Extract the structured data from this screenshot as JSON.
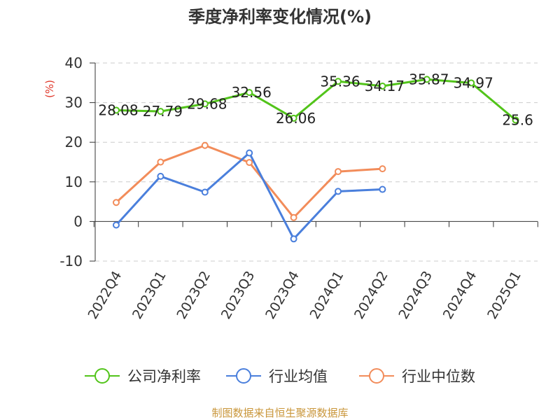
{
  "chart_data": {
    "type": "line",
    "title": "季度净利率变化情况(%)",
    "ylabel": "(%)",
    "xlabel": "",
    "ylim": [
      -10,
      40
    ],
    "yticks": [
      40,
      30,
      20,
      10,
      0,
      -10
    ],
    "grid": true,
    "legend_position": "bottom",
    "categories": [
      "2022Q4",
      "2023Q1",
      "2023Q2",
      "2023Q3",
      "2023Q4",
      "2024Q1",
      "2024Q2",
      "2024Q3",
      "2024Q4",
      "2025Q1"
    ],
    "series": [
      {
        "name": "公司净利率",
        "color": "#52c41a",
        "values": [
          28.08,
          27.79,
          29.68,
          32.56,
          26.06,
          35.36,
          34.17,
          35.87,
          34.97,
          25.6
        ],
        "data_labels": [
          "28.08",
          "27.79",
          "29.68",
          "32.56",
          "26.06",
          "35.36",
          "34.17",
          "35.87",
          "34.97",
          "25.6"
        ]
      },
      {
        "name": "行业均值",
        "color": "#4a7fdc",
        "values": [
          -0.9,
          11.4,
          7.4,
          17.3,
          -4.4,
          7.6,
          8.1,
          null,
          null,
          null
        ]
      },
      {
        "name": "行业中位数",
        "color": "#f28c5a",
        "values": [
          4.8,
          15.0,
          19.2,
          14.9,
          1.0,
          12.6,
          13.3,
          null,
          null,
          null
        ]
      }
    ],
    "source": "制图数据来自恒生聚源数据库"
  }
}
